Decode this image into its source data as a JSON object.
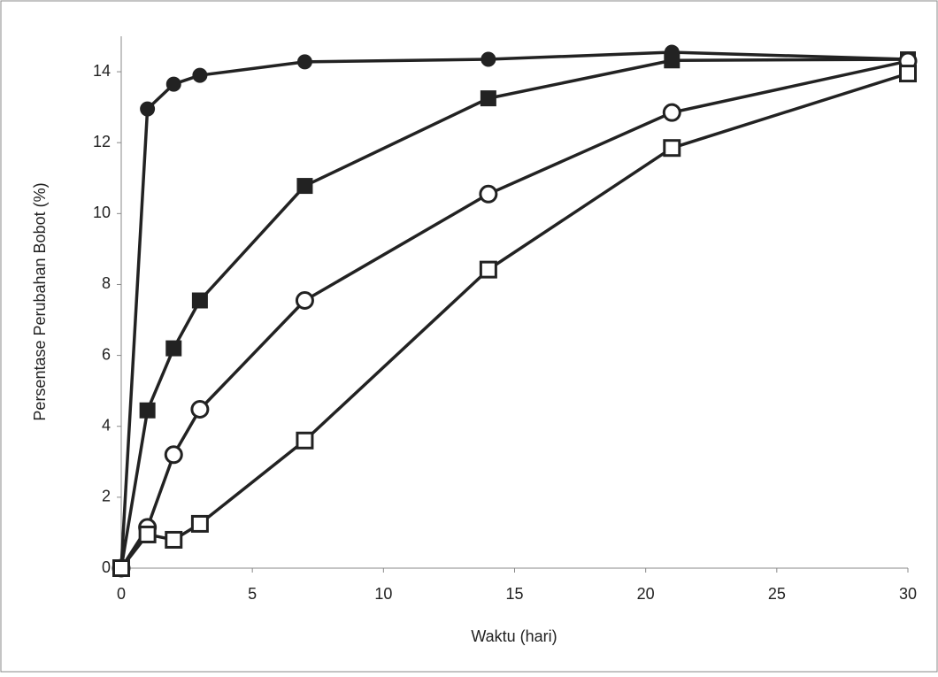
{
  "chart_data": {
    "type": "line",
    "x_label": "Waktu (hari)",
    "y_label": "Persentase Perubahan Bobot (%)",
    "x": [
      0,
      1,
      2,
      3,
      7,
      14,
      21,
      30
    ],
    "series": [
      {
        "color": "#222222",
        "marker": "circle",
        "filled": true,
        "values": [
          0,
          12.95,
          13.65,
          13.9,
          14.28,
          14.35,
          14.55,
          14.35
        ]
      },
      {
        "color": "#222222",
        "marker": "square",
        "filled": true,
        "values": [
          0,
          4.45,
          6.2,
          7.55,
          10.78,
          13.25,
          14.32,
          14.35
        ]
      },
      {
        "color": "#222222",
        "marker": "circle",
        "filled": false,
        "values": [
          0,
          1.15,
          3.2,
          4.48,
          7.55,
          10.55,
          12.85,
          14.3
        ]
      },
      {
        "color": "#222222",
        "marker": "square",
        "filled": false,
        "values": [
          0,
          0.95,
          0.8,
          1.25,
          3.6,
          8.42,
          11.85,
          13.95
        ]
      }
    ],
    "xlim": [
      0,
      30
    ],
    "xticks": [
      0,
      5,
      10,
      15,
      20,
      25,
      30
    ],
    "ylim": [
      0,
      15
    ],
    "yticks": [
      0,
      2,
      4,
      6,
      8,
      10,
      12,
      14
    ],
    "grid": false
  }
}
